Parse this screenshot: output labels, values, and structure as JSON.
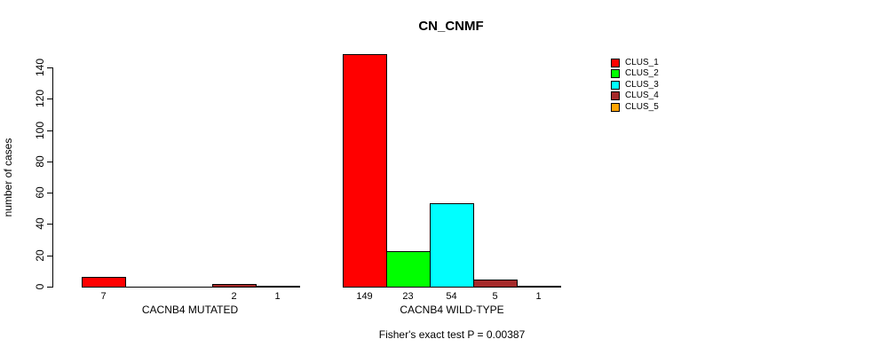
{
  "chart_data": {
    "type": "bar",
    "title": "CN_CNMF",
    "ylabel": "number of cases",
    "xlabel": "",
    "ylim": [
      0,
      140
    ],
    "yticks": [
      0,
      20,
      40,
      60,
      80,
      100,
      120,
      140
    ],
    "grid": false,
    "legend_position": "right",
    "categories": [
      "CACNB4 MUTATED",
      "CACNB4 WILD-TYPE"
    ],
    "series": [
      {
        "name": "CLUS_1",
        "color": "#FF0000",
        "values": [
          7,
          149
        ]
      },
      {
        "name": "CLUS_2",
        "color": "#00FF00",
        "values": [
          0,
          23
        ]
      },
      {
        "name": "CLUS_3",
        "color": "#00FFFF",
        "values": [
          0,
          54
        ]
      },
      {
        "name": "CLUS_4",
        "color": "#A52A2A",
        "values": [
          2,
          5
        ]
      },
      {
        "name": "CLUS_5",
        "color": "#FFA500",
        "values": [
          1,
          1
        ]
      }
    ],
    "bar_value_labels_shown": [
      "7",
      "2",
      "1",
      "149",
      "23",
      "54",
      "5",
      "1"
    ],
    "annotation": "Fisher's exact test P = 0.00387"
  }
}
